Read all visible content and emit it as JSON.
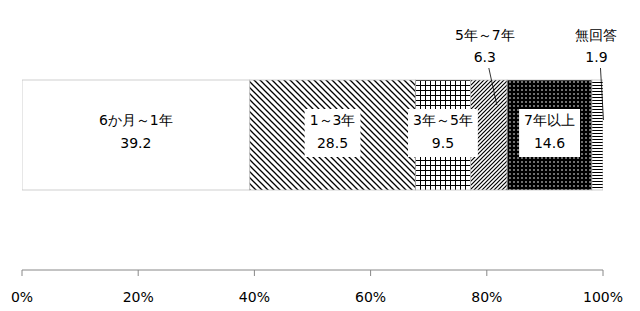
{
  "chart_data": {
    "type": "bar",
    "orientation": "horizontal",
    "stacked": true,
    "data_labels": true,
    "categories": [
      null
    ],
    "series": [
      {
        "name": "6か月～1年",
        "values": [
          39.2
        ]
      },
      {
        "name": "1～3年",
        "values": [
          28.5
        ]
      },
      {
        "name": "3年～5年",
        "values": [
          9.5
        ]
      },
      {
        "name": "5年～7年",
        "values": [
          6.3
        ]
      },
      {
        "name": "7年以上",
        "values": [
          14.6
        ]
      },
      {
        "name": "無回答",
        "values": [
          1.9
        ]
      }
    ],
    "xlim": [
      0,
      100
    ],
    "xticks": [
      {
        "value": 0,
        "label": "0%"
      },
      {
        "value": 20,
        "label": "20%"
      },
      {
        "value": 40,
        "label": "40%"
      },
      {
        "value": 60,
        "label": "60%"
      },
      {
        "value": 80,
        "label": "80%"
      },
      {
        "value": 100,
        "label": "100%"
      }
    ]
  }
}
